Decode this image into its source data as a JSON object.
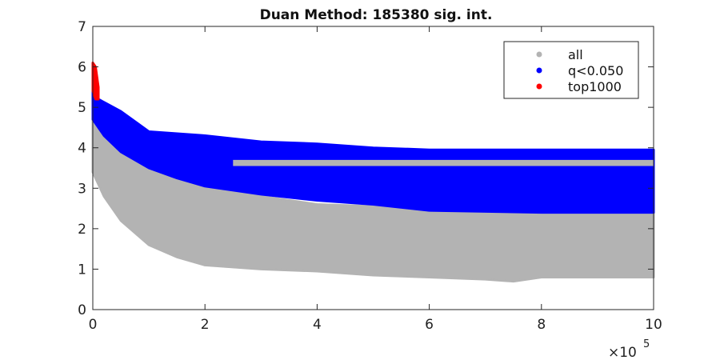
{
  "chart_data": {
    "type": "scatter",
    "title": "Duan Method: 185380 sig. int.",
    "xlabel": "",
    "ylabel": "",
    "x_multiplier_label": "×10",
    "x_multiplier_exponent": "5",
    "xlim": [
      0,
      10
    ],
    "ylim": [
      0,
      7
    ],
    "x_ticks": [
      0,
      2,
      4,
      6,
      8,
      10
    ],
    "y_ticks": [
      0,
      1,
      2,
      3,
      4,
      5,
      6,
      7
    ],
    "grid": false,
    "legend_position": "top-right",
    "series": [
      {
        "name": "all",
        "color": "#b3b3b3",
        "upper": [
          [
            0,
            4.9
          ],
          [
            0.2,
            4.4
          ],
          [
            0.5,
            4.0
          ],
          [
            1.0,
            3.5
          ],
          [
            1.5,
            3.2
          ],
          [
            2.0,
            3.0
          ],
          [
            3.0,
            2.8
          ],
          [
            4.0,
            2.6
          ],
          [
            5.0,
            2.55
          ],
          [
            6.0,
            2.5
          ],
          [
            8.0,
            2.45
          ],
          [
            10.0,
            2.45
          ]
        ],
        "lower": [
          [
            0,
            3.4
          ],
          [
            0.2,
            2.8
          ],
          [
            0.5,
            2.2
          ],
          [
            1.0,
            1.6
          ],
          [
            1.5,
            1.3
          ],
          [
            2.0,
            1.1
          ],
          [
            3.0,
            1.0
          ],
          [
            4.0,
            0.95
          ],
          [
            5.0,
            0.85
          ],
          [
            6.0,
            0.8
          ],
          [
            7.0,
            0.75
          ],
          [
            7.5,
            0.7
          ],
          [
            8.0,
            0.8
          ],
          [
            9.0,
            0.8
          ],
          [
            10.0,
            0.8
          ]
        ]
      },
      {
        "name": "q<0.050",
        "color": "#0000ff",
        "upper": [
          [
            0,
            5.6
          ],
          [
            0.1,
            5.2
          ],
          [
            0.5,
            4.9
          ],
          [
            0.8,
            4.6
          ],
          [
            1.0,
            4.4
          ],
          [
            2.0,
            4.3
          ],
          [
            3.0,
            4.15
          ],
          [
            4.0,
            4.1
          ],
          [
            5.0,
            4.0
          ],
          [
            6.0,
            3.95
          ],
          [
            8.0,
            3.95
          ],
          [
            10.0,
            3.95
          ]
        ],
        "lower": [
          [
            0,
            4.7
          ],
          [
            0.2,
            4.3
          ],
          [
            0.5,
            3.9
          ],
          [
            1.0,
            3.5
          ],
          [
            1.5,
            3.25
          ],
          [
            2.0,
            3.05
          ],
          [
            3.0,
            2.85
          ],
          [
            4.0,
            2.7
          ],
          [
            5.0,
            2.6
          ],
          [
            6.0,
            2.45
          ],
          [
            8.0,
            2.4
          ],
          [
            10.0,
            2.4
          ]
        ],
        "gap": [
          [
            2.5,
            3.55
          ],
          [
            10.0,
            3.55
          ],
          [
            10.0,
            3.7
          ],
          [
            2.5,
            3.7
          ]
        ]
      },
      {
        "name": "top1000",
        "color": "#ff0000",
        "upper": [
          [
            0,
            6.1
          ],
          [
            0.05,
            6.0
          ],
          [
            0.1,
            5.5
          ]
        ],
        "lower": [
          [
            0,
            5.4
          ],
          [
            0.05,
            5.2
          ],
          [
            0.1,
            5.2
          ]
        ]
      }
    ]
  }
}
